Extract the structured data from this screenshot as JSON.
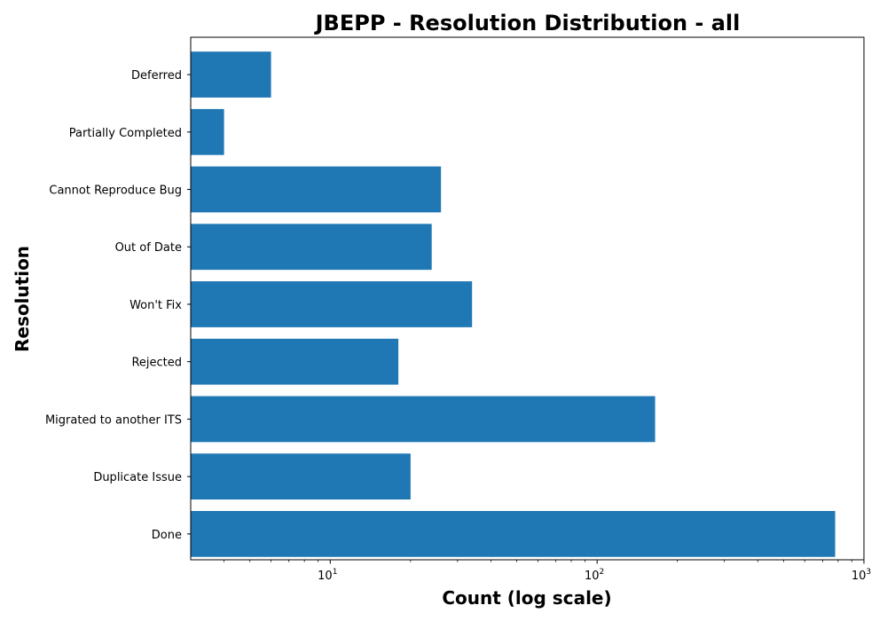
{
  "chart_data": {
    "type": "bar",
    "orientation": "horizontal",
    "title": "JBEPP - Resolution Distribution - all",
    "xlabel": "Count (log scale)",
    "ylabel": "Resolution",
    "x_scale": "log",
    "xlim": [
      3,
      1000
    ],
    "grid": false,
    "bar_color": "#1f77b4",
    "x_ticks": [
      {
        "base": "10",
        "exp": "1",
        "value": 10
      },
      {
        "base": "10",
        "exp": "2",
        "value": 100
      },
      {
        "base": "10",
        "exp": "3",
        "value": 1000
      }
    ],
    "categories": [
      "Done",
      "Duplicate Issue",
      "Migrated to another ITS",
      "Rejected",
      "Won't Fix",
      "Out of Date",
      "Cannot Reproduce Bug",
      "Partially Completed",
      "Deferred"
    ],
    "values": [
      780,
      20,
      165,
      18,
      34,
      24,
      26,
      4,
      6
    ]
  }
}
